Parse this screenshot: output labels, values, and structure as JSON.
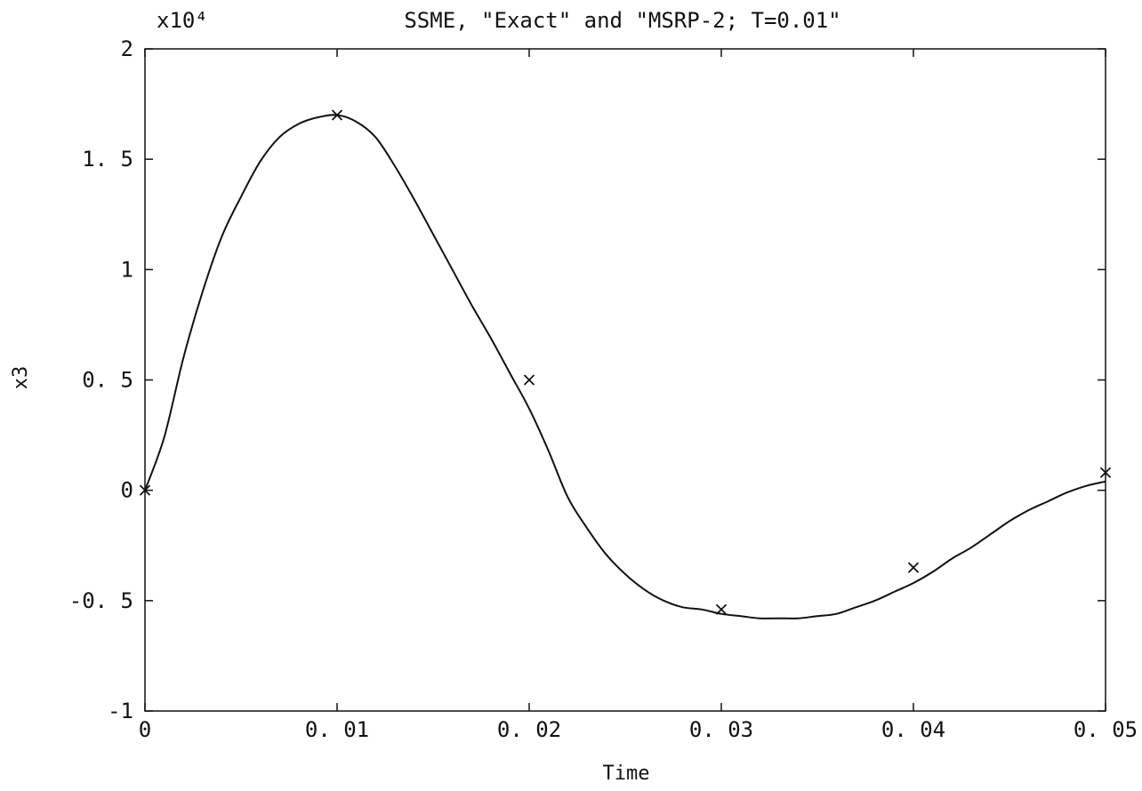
{
  "chart_data": {
    "type": "line",
    "title": "SSME, \"Exact\" and \"MSRP-2; T=0.01\"",
    "exponent_label": "x10⁴",
    "xlabel": "Time",
    "ylabel": "x3",
    "xlim": [
      0,
      0.05
    ],
    "ylim": [
      -1,
      2
    ],
    "x_ticks": [
      0,
      0.01,
      0.02,
      0.03,
      0.04,
      0.05
    ],
    "x_tick_labels": [
      "0",
      "0. 01",
      "0. 02",
      "0. 03",
      "0. 04",
      "0. 05"
    ],
    "y_ticks": [
      -1,
      -0.5,
      0,
      0.5,
      1,
      1.5,
      2
    ],
    "y_tick_labels": [
      "-1",
      "-0. 5",
      "0",
      "0. 5",
      "1",
      "1. 5",
      "2"
    ],
    "grid": false,
    "series": [
      {
        "style": "solid-line",
        "color": "#111111",
        "x": [
          0,
          0.001,
          0.002,
          0.003,
          0.004,
          0.005,
          0.006,
          0.007,
          0.008,
          0.009,
          0.01,
          0.011,
          0.012,
          0.013,
          0.014,
          0.015,
          0.016,
          0.017,
          0.018,
          0.019,
          0.02,
          0.021,
          0.022,
          0.023,
          0.024,
          0.025,
          0.026,
          0.027,
          0.028,
          0.029,
          0.03,
          0.031,
          0.032,
          0.033,
          0.034,
          0.035,
          0.036,
          0.037,
          0.038,
          0.039,
          0.04,
          0.041,
          0.042,
          0.043,
          0.044,
          0.045,
          0.046,
          0.047,
          0.048,
          0.049,
          0.05
        ],
        "y": [
          0,
          0.24,
          0.6,
          0.9,
          1.15,
          1.33,
          1.49,
          1.6,
          1.66,
          1.69,
          1.7,
          1.67,
          1.6,
          1.47,
          1.32,
          1.16,
          1.0,
          0.84,
          0.69,
          0.53,
          0.37,
          0.18,
          -0.03,
          -0.17,
          -0.29,
          -0.38,
          -0.45,
          -0.5,
          -0.53,
          -0.54,
          -0.56,
          -0.57,
          -0.58,
          -0.58,
          -0.58,
          -0.57,
          -0.56,
          -0.53,
          -0.5,
          -0.46,
          -0.42,
          -0.37,
          -0.31,
          -0.26,
          -0.2,
          -0.14,
          -0.09,
          -0.05,
          -0.01,
          0.02,
          0.04
        ]
      },
      {
        "style": "x-markers",
        "color": "#111111",
        "x": [
          0,
          0.01,
          0.02,
          0.03,
          0.04,
          0.05
        ],
        "y": [
          0,
          1.7,
          0.5,
          -0.54,
          -0.35,
          0.08
        ]
      }
    ]
  }
}
